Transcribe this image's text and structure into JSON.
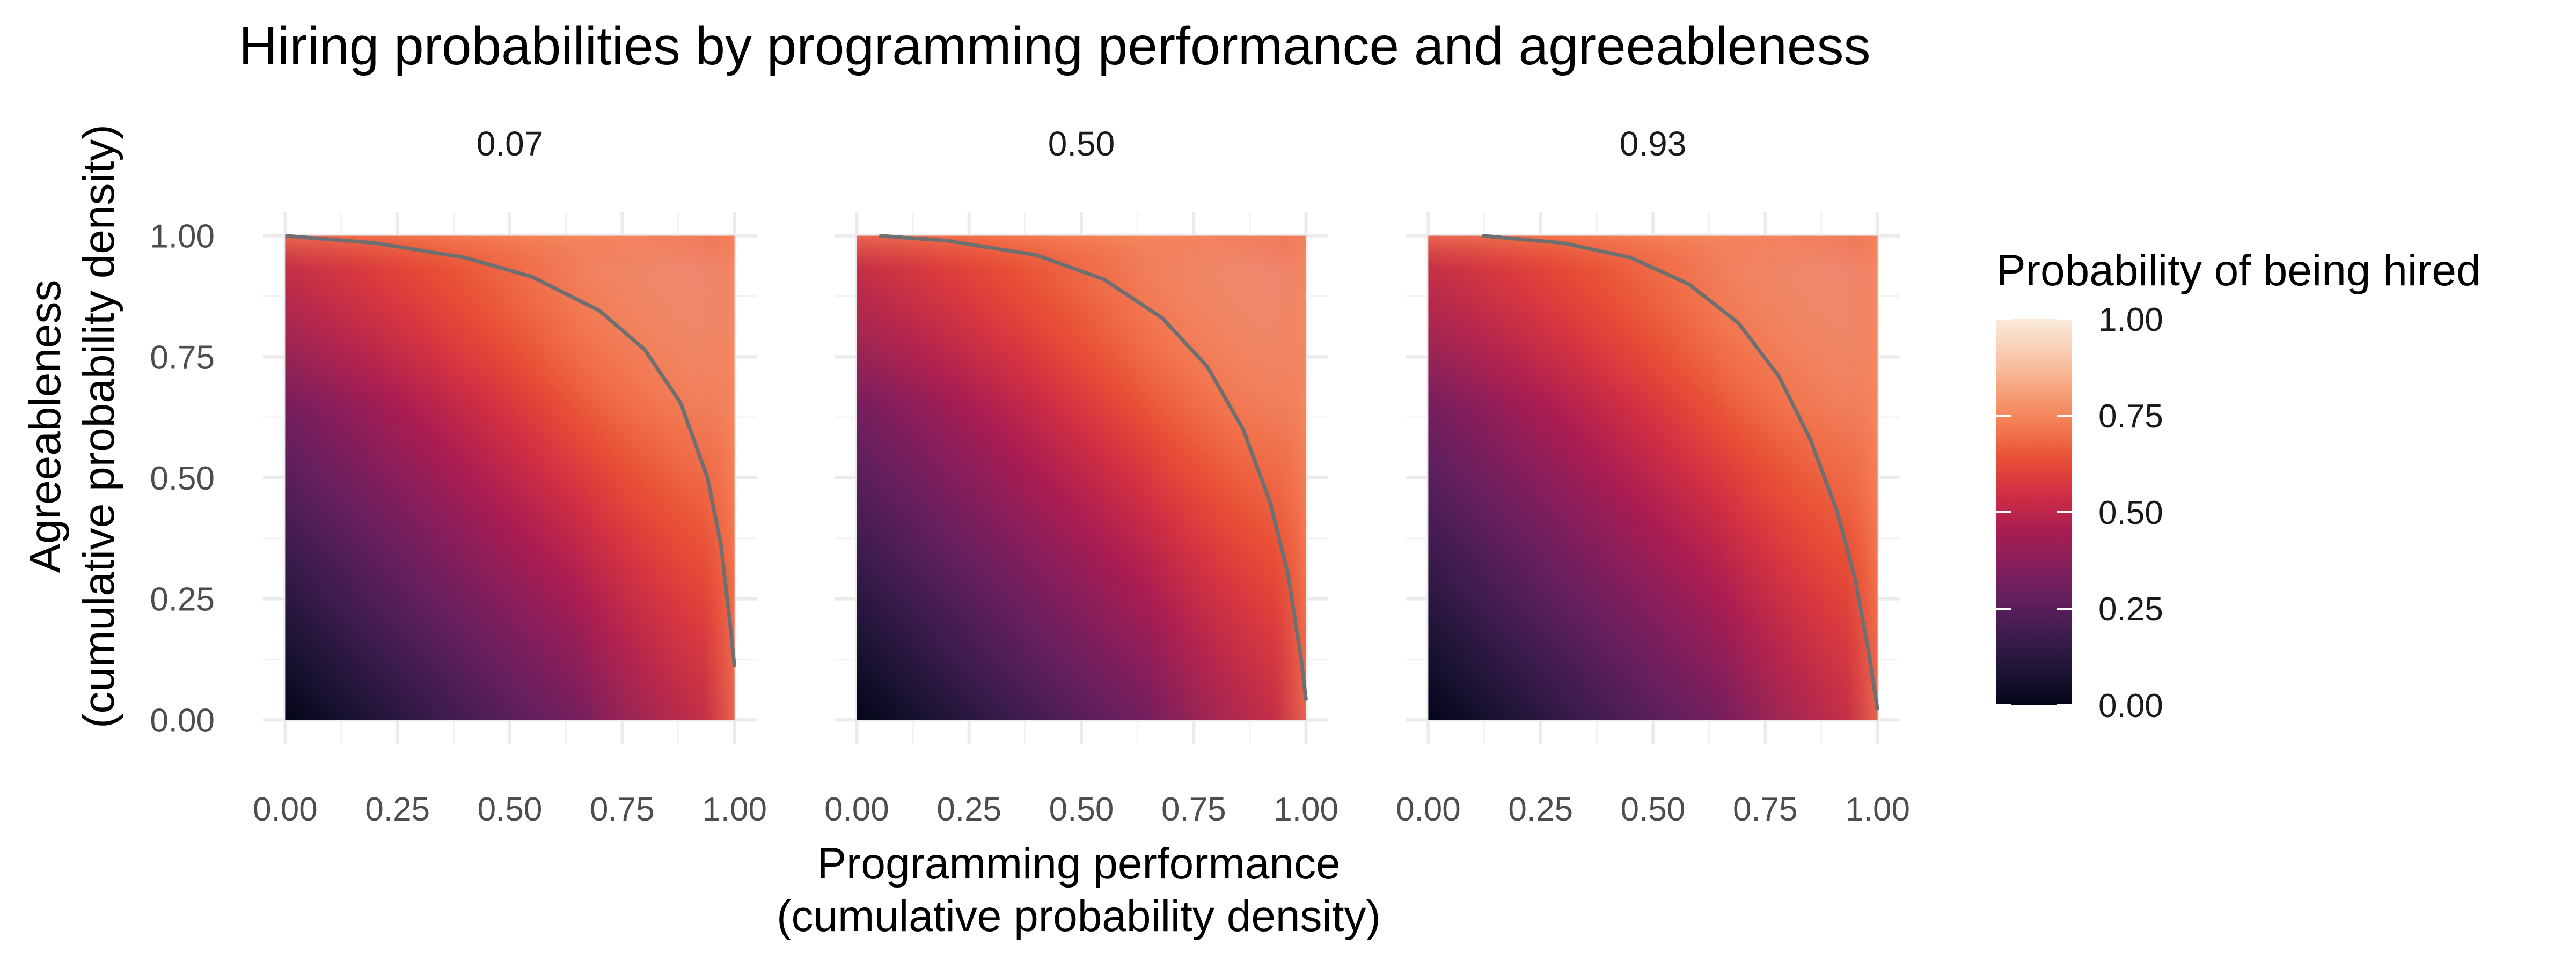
{
  "chart_data": {
    "type": "heatmap",
    "title": "Hiring probabilities by programming performance and agreeableness",
    "xlabel_line1": "Programming performance",
    "xlabel_line2": "(cumulative probability density)",
    "ylabel_line1": "Agreeableness",
    "ylabel_line2": "(cumulative probability density)",
    "x_range": [
      0,
      1
    ],
    "y_range": [
      0,
      1
    ],
    "x_ticks": [
      "0.00",
      "0.25",
      "0.50",
      "0.75",
      "1.00"
    ],
    "y_ticks": [
      "0.00",
      "0.25",
      "0.50",
      "0.75",
      "1.00"
    ],
    "facets": [
      {
        "label": "0.07",
        "correlation": 0.07,
        "contour_50pct": [
          [
            0.0,
            1.0
          ],
          [
            0.2,
            0.985
          ],
          [
            0.4,
            0.955
          ],
          [
            0.55,
            0.915
          ],
          [
            0.7,
            0.845
          ],
          [
            0.8,
            0.765
          ],
          [
            0.88,
            0.655
          ],
          [
            0.94,
            0.5
          ],
          [
            0.97,
            0.36
          ],
          [
            0.99,
            0.2
          ],
          [
            1.0,
            0.11
          ]
        ]
      },
      {
        "label": "0.50",
        "correlation": 0.5,
        "contour_50pct": [
          [
            0.05,
            1.0
          ],
          [
            0.2,
            0.99
          ],
          [
            0.4,
            0.96
          ],
          [
            0.55,
            0.91
          ],
          [
            0.68,
            0.83
          ],
          [
            0.78,
            0.73
          ],
          [
            0.86,
            0.6
          ],
          [
            0.92,
            0.45
          ],
          [
            0.96,
            0.3
          ],
          [
            0.99,
            0.12
          ],
          [
            1.0,
            0.04
          ]
        ]
      },
      {
        "label": "0.93",
        "correlation": 0.93,
        "contour_50pct": [
          [
            0.12,
            1.0
          ],
          [
            0.3,
            0.985
          ],
          [
            0.45,
            0.955
          ],
          [
            0.58,
            0.9
          ],
          [
            0.69,
            0.82
          ],
          [
            0.78,
            0.71
          ],
          [
            0.85,
            0.58
          ],
          [
            0.91,
            0.43
          ],
          [
            0.95,
            0.29
          ],
          [
            0.98,
            0.14
          ],
          [
            1.0,
            0.02
          ]
        ]
      }
    ],
    "legend": {
      "title": "Probability of being hired",
      "ticks": [
        "1.00",
        "0.75",
        "0.50",
        "0.25",
        "0.00"
      ],
      "tick_values": [
        1.0,
        0.75,
        0.5,
        0.25,
        0.0
      ],
      "colormap": "rocket",
      "colors": [
        "#03051a",
        "#1e1435",
        "#3e1c4f",
        "#611f5e",
        "#851e5b",
        "#ab1d52",
        "#cf2e43",
        "#e84f35",
        "#f47c52",
        "#f6a47c",
        "#f9cbad",
        "#faebdd"
      ]
    },
    "grid": true,
    "legend_position": "right"
  }
}
